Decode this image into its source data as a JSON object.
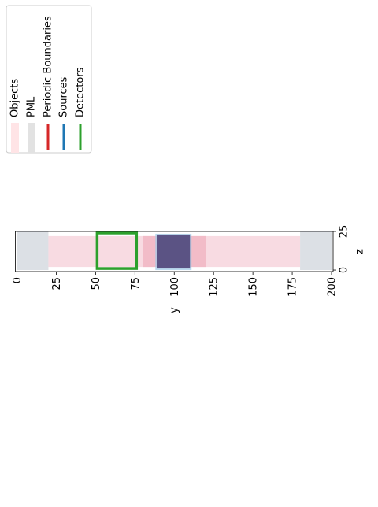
{
  "chart_data": {
    "type": "heatmap",
    "title": "",
    "xlabel": "y",
    "ylabel": "z",
    "xlim": [
      -1,
      201
    ],
    "ylim": [
      -1,
      25
    ],
    "x_ticks": [
      0,
      25,
      50,
      75,
      100,
      125,
      150,
      175,
      200
    ],
    "y_ticks": [
      0,
      25
    ],
    "grid": false,
    "legend_placement": "top-left",
    "legend": [
      {
        "name": "Objects",
        "color": "#ffe4e6",
        "kind": "patch"
      },
      {
        "name": "PML",
        "color": "#e2e2e2",
        "kind": "patch"
      },
      {
        "name": "Periodic Boundaries",
        "color": "#d62728",
        "kind": "line"
      },
      {
        "name": "Sources",
        "color": "#1f77b4",
        "kind": "line"
      },
      {
        "name": "Detectors",
        "color": "#2ca02c",
        "kind": "line"
      }
    ],
    "regions": [
      {
        "name": "PML",
        "y": [
          0,
          20
        ],
        "z": [
          0,
          25
        ],
        "color": "#dce0e5"
      },
      {
        "name": "PML",
        "y": [
          180,
          200
        ],
        "z": [
          0,
          25
        ],
        "color": "#dce0e5"
      },
      {
        "name": "Objects",
        "y": [
          20,
          180
        ],
        "z": [
          2,
          22
        ],
        "color": "#f8dbe2"
      },
      {
        "name": "Objects",
        "y": [
          80,
          120
        ],
        "z": [
          2,
          22
        ],
        "color": "#f2bcc8"
      }
    ],
    "sources": [
      {
        "name": "Sources",
        "y": [
          89,
          110
        ],
        "z": [
          1,
          23
        ],
        "color": "#5b5384"
      }
    ],
    "detectors": [
      {
        "name": "Detectors",
        "y": [
          51,
          76
        ],
        "z": [
          1,
          24
        ],
        "color": "#2ca02c"
      }
    ]
  }
}
